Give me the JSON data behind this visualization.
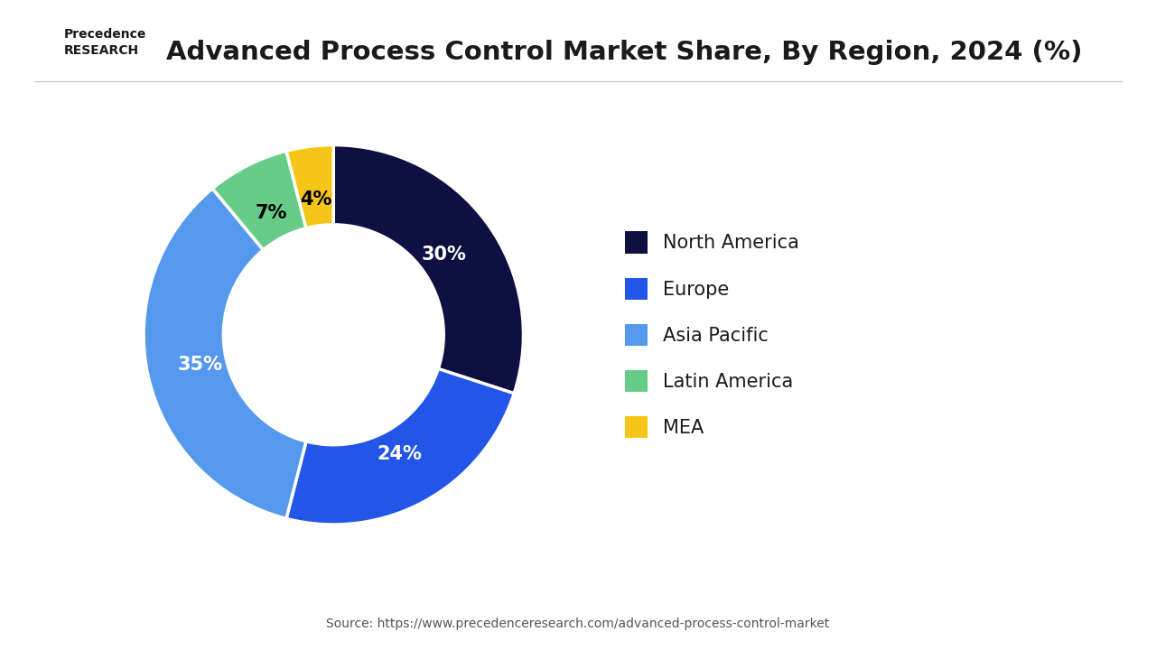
{
  "title": "Advanced Process Control Market Share, By Region, 2024 (%)",
  "labels": [
    "North America",
    "Europe",
    "Asia Pacific",
    "Latin America",
    "MEA"
  ],
  "values": [
    30,
    24,
    35,
    7,
    4
  ],
  "colors": [
    "#0d1040",
    "#2255e8",
    "#5599ee",
    "#66cc88",
    "#f5c518"
  ],
  "pct_labels": [
    "30%",
    "24%",
    "35%",
    "7%",
    "4%"
  ],
  "pct_text_colors": [
    "white",
    "white",
    "white",
    "black",
    "black"
  ],
  "source": "Source: https://www.precedenceresearch.com/advanced-process-control-market",
  "background_color": "#ffffff",
  "title_fontsize": 21,
  "legend_fontsize": 15,
  "pct_fontsize": 15
}
